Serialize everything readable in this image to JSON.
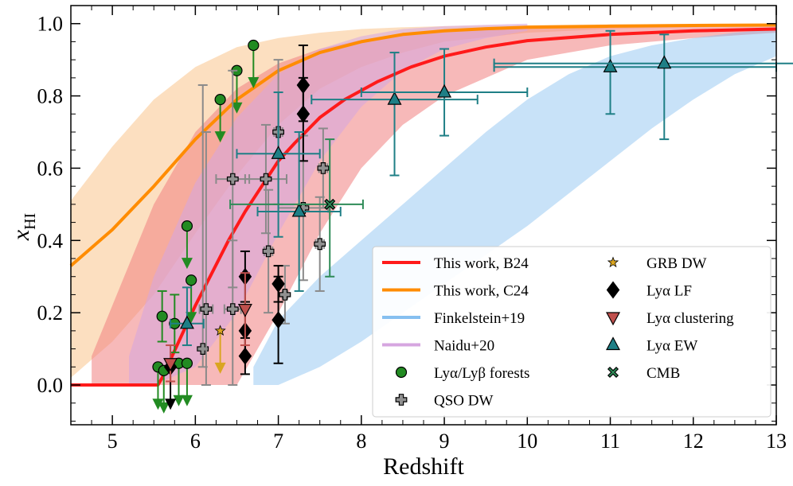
{
  "chart_data": {
    "type": "scatter",
    "xlabel": "Redshift",
    "ylabel_main": "x",
    "ylabel_sub": "HI",
    "xlim": [
      4.5,
      13
    ],
    "ylim": [
      -0.11,
      1.05
    ],
    "xticks": [
      5,
      6,
      7,
      8,
      9,
      10,
      11,
      12,
      13
    ],
    "yticks": [
      0.0,
      0.2,
      0.4,
      0.6,
      0.8,
      1.0
    ],
    "xtick_labels": [
      "5",
      "6",
      "7",
      "8",
      "9",
      "10",
      "11",
      "12",
      "13"
    ],
    "ytick_labels": [
      "0.0",
      "0.2",
      "0.4",
      "0.6",
      "0.8",
      "1.0"
    ],
    "colors": {
      "b24": "#ff1a1a",
      "b24_band": "#f08080",
      "c24": "#ff8c00",
      "c24_band": "#f9c58d",
      "finkelstein": "#86bff0",
      "naidu": "#d6a6e0",
      "forest": "#228b22",
      "qso": "#909090",
      "grb": "#daa520",
      "lf": "#000000",
      "clustering": "#c0504d",
      "ew": "#1f7f86",
      "cmb": "#2e8b57"
    },
    "curves": [
      {
        "name": "This work, B24",
        "x": [
          4.5,
          5.55,
          5.6,
          5.7,
          5.8,
          5.9,
          6.0,
          6.2,
          6.4,
          6.6,
          6.8,
          7.0,
          7.2,
          7.5,
          7.8,
          8.2,
          8.6,
          9.0,
          9.5,
          10,
          11,
          12,
          13
        ],
        "y": [
          0,
          0,
          0.02,
          0.07,
          0.12,
          0.17,
          0.22,
          0.31,
          0.4,
          0.48,
          0.55,
          0.62,
          0.67,
          0.74,
          0.79,
          0.84,
          0.88,
          0.91,
          0.935,
          0.953,
          0.97,
          0.98,
          0.985
        ]
      },
      {
        "name": "This work, C24",
        "x": [
          4.5,
          5.0,
          5.5,
          6.0,
          6.5,
          7.0,
          7.5,
          8.0,
          8.5,
          9.0,
          9.5,
          10,
          11,
          12,
          13
        ],
        "y": [
          0.33,
          0.43,
          0.55,
          0.68,
          0.79,
          0.87,
          0.92,
          0.95,
          0.97,
          0.98,
          0.986,
          0.99,
          0.993,
          0.995,
          0.996
        ]
      }
    ],
    "bands": [
      {
        "name": "This work, C24 band",
        "x": [
          4.5,
          5.0,
          5.5,
          6.0,
          6.5,
          7.0,
          7.5,
          8.0,
          8.5,
          9.0,
          10,
          11,
          12,
          13
        ],
        "upper": [
          0.51,
          0.66,
          0.79,
          0.88,
          0.935,
          0.96,
          0.975,
          0.985,
          0.99,
          0.993,
          0.996,
          0.998,
          0.999,
          1.0
        ],
        "lower": [
          0.02,
          0.12,
          0.25,
          0.42,
          0.58,
          0.72,
          0.82,
          0.88,
          0.92,
          0.95,
          0.975,
          0.985,
          0.99,
          0.993
        ]
      },
      {
        "name": "This work, B24 band",
        "x": [
          4.75,
          5.0,
          5.5,
          6.0,
          6.5,
          7.0,
          7.5,
          8.0,
          8.5,
          9.0,
          10,
          11,
          12,
          13
        ],
        "upper": [
          0.08,
          0.22,
          0.5,
          0.7,
          0.82,
          0.89,
          0.93,
          0.955,
          0.97,
          0.98,
          0.99,
          0.995,
          0.998,
          0.999
        ],
        "lower": [
          0.0,
          0.0,
          0.0,
          0.0,
          0.0,
          0.2,
          0.42,
          0.6,
          0.72,
          0.8,
          0.9,
          0.94,
          0.96,
          0.975
        ]
      },
      {
        "name": "Naidu+20",
        "x": [
          5.2,
          5.5,
          6.0,
          6.5,
          7.0,
          7.5,
          8.0,
          8.5,
          9.0,
          9.5,
          10.0
        ],
        "upper": [
          0.08,
          0.3,
          0.56,
          0.74,
          0.86,
          0.93,
          0.965,
          0.985,
          0.993,
          0.997,
          1.0
        ],
        "lower": [
          0.0,
          0.0,
          0.05,
          0.2,
          0.42,
          0.62,
          0.77,
          0.87,
          0.93,
          0.96,
          0.98
        ]
      },
      {
        "name": "Finkelstein+19",
        "x": [
          6.7,
          7.0,
          7.5,
          8.0,
          8.5,
          9.0,
          9.5,
          10,
          10.5,
          11,
          11.5,
          12,
          12.5,
          13
        ],
        "upper": [
          0.05,
          0.18,
          0.3,
          0.4,
          0.5,
          0.6,
          0.7,
          0.79,
          0.86,
          0.91,
          0.94,
          0.96,
          0.975,
          0.985
        ],
        "lower": [
          0.0,
          0.0,
          0.05,
          0.12,
          0.2,
          0.28,
          0.36,
          0.44,
          0.53,
          0.62,
          0.71,
          0.79,
          0.86,
          0.91
        ]
      }
    ],
    "points": [
      {
        "g": "forest",
        "m": "circle",
        "x": 5.55,
        "y": 0.05,
        "ul": true
      },
      {
        "g": "forest",
        "m": "circle",
        "x": 5.6,
        "y": 0.19,
        "yerr": [
          0.07,
          0.07
        ]
      },
      {
        "g": "forest",
        "m": "circle",
        "x": 5.62,
        "y": 0.04,
        "ul": true
      },
      {
        "g": "forest",
        "m": "circle",
        "x": 5.75,
        "y": 0.17,
        "yerr": [
          0.08,
          0.08
        ]
      },
      {
        "g": "forest",
        "m": "circle",
        "x": 5.8,
        "y": 0.06,
        "ul": true
      },
      {
        "g": "forest",
        "m": "circle",
        "x": 5.9,
        "y": 0.06,
        "ul": true
      },
      {
        "g": "forest",
        "m": "circle",
        "x": 5.95,
        "y": 0.29,
        "ul": true
      },
      {
        "g": "forest",
        "m": "circle",
        "x": 5.9,
        "y": 0.44,
        "ul": true
      },
      {
        "g": "forest",
        "m": "circle",
        "x": 6.3,
        "y": 0.79,
        "ul": true
      },
      {
        "g": "forest",
        "m": "circle",
        "x": 6.5,
        "y": 0.87,
        "ul": true
      },
      {
        "g": "forest",
        "m": "circle",
        "x": 6.7,
        "y": 0.94,
        "ul": true
      },
      {
        "g": "qso",
        "m": "plus",
        "x": 6.09,
        "y": 0.1,
        "yerr": [
          0.05,
          0.73
        ],
        "xerr": [
          0.01,
          0.01
        ]
      },
      {
        "g": "qso",
        "m": "plus",
        "x": 6.13,
        "y": 0.21,
        "yerr": [
          0.21,
          0.49
        ],
        "xerr": [
          0.08,
          0.08
        ]
      },
      {
        "g": "qso",
        "m": "plus",
        "x": 6.45,
        "y": 0.21,
        "yerr": [
          0.21,
          0.19
        ],
        "xerr": [
          0.1,
          0.1
        ]
      },
      {
        "g": "qso",
        "m": "plus",
        "x": 6.45,
        "y": 0.57,
        "yerr": [
          0.3,
          0.3
        ],
        "xerr": [
          0.2,
          0.2
        ]
      },
      {
        "g": "qso",
        "m": "plus",
        "x": 6.85,
        "y": 0.57,
        "yerr": [
          0.15,
          0.15
        ],
        "xerr": [
          0.25,
          0.25
        ]
      },
      {
        "g": "qso",
        "m": "plus",
        "x": 6.88,
        "y": 0.37,
        "yerr": [
          0.17,
          0.17
        ],
        "xerr": [
          0.05,
          0.05
        ]
      },
      {
        "g": "qso",
        "m": "plus",
        "x": 7.0,
        "y": 0.7,
        "yerr": [
          0.2,
          0.2
        ],
        "xerr": [
          0.05,
          0.05
        ]
      },
      {
        "g": "qso",
        "m": "plus",
        "x": 7.08,
        "y": 0.25,
        "yerr": [
          0.08,
          0.08
        ],
        "xerr": [
          0.03,
          0.03
        ]
      },
      {
        "g": "qso",
        "m": "plus",
        "x": 7.3,
        "y": 0.49,
        "yerr": [
          0.2,
          0.2
        ],
        "xerr": [
          0.3,
          0.3
        ]
      },
      {
        "g": "qso",
        "m": "plus",
        "x": 7.5,
        "y": 0.39,
        "yerr": [
          0.13,
          0.13
        ],
        "xerr": [
          0.05,
          0.05
        ]
      },
      {
        "g": "qso",
        "m": "plus",
        "x": 7.54,
        "y": 0.6,
        "yerr": [
          0.11,
          0.11
        ],
        "xerr": [
          0.05,
          0.05
        ]
      },
      {
        "g": "grb",
        "m": "star",
        "x": 6.3,
        "y": 0.15,
        "ul": true
      },
      {
        "g": "lf",
        "m": "diamond",
        "x": 5.7,
        "y": 0.05,
        "ul": true
      },
      {
        "g": "lf",
        "m": "diamond",
        "x": 6.6,
        "y": 0.3,
        "yerr": [
          0.07,
          0.07
        ]
      },
      {
        "g": "lf",
        "m": "diamond",
        "x": 6.6,
        "y": 0.15,
        "yerr": [
          0.07,
          0.08
        ]
      },
      {
        "g": "lf",
        "m": "diamond",
        "x": 6.6,
        "y": 0.08,
        "yerr": [
          0.05,
          0.05
        ]
      },
      {
        "g": "lf",
        "m": "diamond",
        "x": 7.0,
        "y": 0.28,
        "yerr": [
          0.05,
          0.05
        ]
      },
      {
        "g": "lf",
        "m": "diamond",
        "x": 7.0,
        "y": 0.18,
        "yerr": [
          0.12,
          0.12
        ]
      },
      {
        "g": "lf",
        "m": "diamond",
        "x": 7.3,
        "y": 0.83,
        "yerr": [
          0.1,
          0.11
        ]
      },
      {
        "g": "lf",
        "m": "diamond",
        "x": 7.3,
        "y": 0.75,
        "yerr": [
          0.13,
          0.1
        ]
      },
      {
        "g": "clustering",
        "m": "tri-down",
        "x": 5.7,
        "y": 0.06,
        "yerr": [
          0.05,
          0.05
        ]
      },
      {
        "g": "clustering",
        "m": "tri-down",
        "x": 6.6,
        "y": 0.21,
        "yerr": [
          0.1,
          0.1
        ]
      },
      {
        "g": "ew",
        "m": "tri-up",
        "x": 5.9,
        "y": 0.17,
        "yerr": [
          0.06,
          0.1
        ],
        "xerr": [
          0.2,
          0.2
        ]
      },
      {
        "g": "ew",
        "m": "tri-up",
        "x": 7.0,
        "y": 0.64,
        "yerr": [
          0.23,
          0.17
        ],
        "xerr": [
          0.5,
          0.5
        ]
      },
      {
        "g": "ew",
        "m": "tri-up",
        "x": 7.25,
        "y": 0.48,
        "yerr": [
          0.22,
          0.22
        ],
        "xerr": [
          0.5,
          0.5
        ]
      },
      {
        "g": "ew",
        "m": "tri-up",
        "x": 8.4,
        "y": 0.79,
        "yerr": [
          0.21,
          0.13
        ],
        "xerr": [
          1.0,
          1.0
        ]
      },
      {
        "g": "ew",
        "m": "tri-up",
        "x": 9.0,
        "y": 0.81,
        "yerr": [
          0.12,
          0.12
        ],
        "xerr": [
          1.0,
          1.0
        ]
      },
      {
        "g": "ew",
        "m": "tri-up",
        "x": 11.0,
        "y": 0.88,
        "yerr": [
          0.13,
          0.1
        ],
        "xerr": [
          1.4,
          2.0
        ]
      },
      {
        "g": "ew",
        "m": "tri-up",
        "x": 11.65,
        "y": 0.89,
        "yerr": [
          0.21,
          0.08
        ],
        "xerr": [
          2.05,
          2.0
        ]
      },
      {
        "g": "cmb",
        "m": "cross",
        "x": 7.62,
        "y": 0.5,
        "yerr": [
          0.2,
          0.18
        ],
        "xerr": [
          1.2,
          0.4
        ]
      }
    ],
    "legend": {
      "placement": "lower-right",
      "col1": [
        {
          "label": "This work, B24",
          "kind": "line",
          "color": "#ff1a1a"
        },
        {
          "label": "This work, C24",
          "kind": "line",
          "color": "#ff8c00"
        },
        {
          "label": "Finkelstein+19",
          "kind": "line",
          "color": "#86bff0"
        },
        {
          "label": "Naidu+20",
          "kind": "line",
          "color": "#d6a6e0"
        },
        {
          "label": "Lyα/Lyβ forests",
          "kind": "circle",
          "color": "#228b22"
        },
        {
          "label": "QSO DW",
          "kind": "plus",
          "color": "#909090"
        }
      ],
      "col2": [
        {
          "label": "GRB DW",
          "kind": "star",
          "color": "#daa520"
        },
        {
          "label": "Lyα LF",
          "kind": "diamond",
          "color": "#000000"
        },
        {
          "label": "Lyα clustering",
          "kind": "tri-down",
          "color": "#c0504d"
        },
        {
          "label": "Lyα EW",
          "kind": "tri-up",
          "color": "#1f7f86"
        },
        {
          "label": "CMB",
          "kind": "cross",
          "color": "#2e8b57"
        }
      ]
    }
  }
}
